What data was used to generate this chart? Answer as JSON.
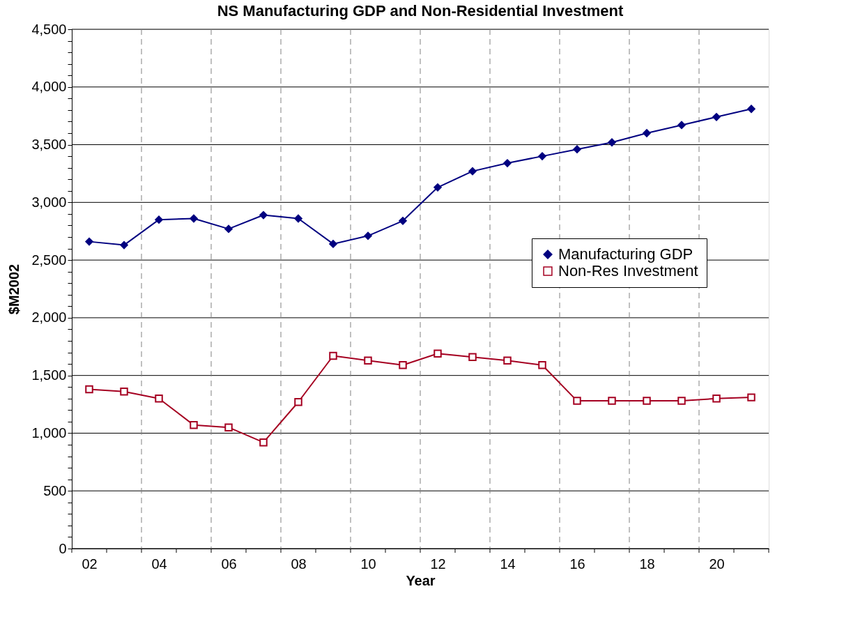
{
  "chart_data": {
    "type": "line",
    "title": "NS Manufacturing GDP  and  Non-Residential Investment",
    "xlabel": "Year",
    "ylabel": "$M2002",
    "categories": [
      "02",
      null,
      "04",
      null,
      "06",
      null,
      "08",
      null,
      "10",
      null,
      "12",
      null,
      "14",
      null,
      "16",
      null,
      "18",
      null,
      "20",
      null
    ],
    "series": [
      {
        "name": "Manufacturing GDP",
        "color": "#000080",
        "marker": "diamond",
        "values": [
          2660,
          2630,
          2850,
          2860,
          2770,
          2890,
          2860,
          2640,
          2710,
          2840,
          3130,
          3270,
          3340,
          3400,
          3460,
          3520,
          3600,
          3670,
          3740,
          3810
        ]
      },
      {
        "name": "Non-Res Investment",
        "color": "#a50021",
        "marker": "square",
        "values": [
          1380,
          1360,
          1300,
          1070,
          1050,
          920,
          1270,
          1670,
          1630,
          1590,
          1690,
          1660,
          1630,
          1590,
          1280,
          1280,
          1280,
          1280,
          1300,
          1310
        ]
      }
    ],
    "ylim": [
      0,
      4500
    ],
    "yticks": [
      0,
      {
        "value": 100,
        "label": null
      },
      {
        "value": 200,
        "label": null
      },
      {
        "value": 300,
        "label": null
      },
      {
        "value": 400,
        "label": null
      },
      {
        "value": 500,
        "label": "500"
      },
      {
        "value": 600,
        "label": null
      },
      {
        "value": 700,
        "label": null
      },
      {
        "value": 800,
        "label": null
      },
      {
        "value": 900,
        "label": null
      },
      {
        "value": 1000,
        "label": "1,000"
      },
      {
        "value": 1100,
        "label": null
      },
      {
        "value": 1200,
        "label": null
      },
      {
        "value": 1300,
        "label": null
      },
      {
        "value": 1400,
        "label": null
      },
      {
        "value": 1500,
        "label": "1,500"
      },
      {
        "value": 1600,
        "label": null
      },
      {
        "value": 1700,
        "label": null
      },
      {
        "value": 1800,
        "label": null
      },
      {
        "value": 1900,
        "label": null
      },
      {
        "value": 2000,
        "label": "2,000"
      },
      {
        "value": 2100,
        "label": null
      },
      {
        "value": 2200,
        "label": null
      },
      {
        "value": 2300,
        "label": null
      },
      {
        "value": 2400,
        "label": null
      },
      {
        "value": 2500,
        "label": "2,500"
      },
      {
        "value": 2600,
        "label": null
      },
      {
        "value": 2700,
        "label": null
      },
      {
        "value": 2800,
        "label": null
      },
      {
        "value": 2900,
        "label": null
      },
      {
        "value": 3000,
        "label": "3,000"
      },
      {
        "value": 3100,
        "label": null
      },
      {
        "value": 3200,
        "label": null
      },
      {
        "value": 3300,
        "label": null
      },
      {
        "value": 3400,
        "label": null
      },
      {
        "value": 3500,
        "label": "3,500"
      },
      {
        "value": 3600,
        "label": null
      },
      {
        "value": 3700,
        "label": null
      },
      {
        "value": 3800,
        "label": null
      },
      {
        "value": 3900,
        "label": null
      },
      {
        "value": 4000,
        "label": "4,000"
      },
      {
        "value": 4100,
        "label": null
      },
      {
        "value": 4200,
        "label": null
      },
      {
        "value": 4300,
        "label": null
      },
      {
        "value": 4400,
        "label": null
      },
      {
        "value": 4500,
        "label": "4,500"
      }
    ],
    "grid": true,
    "legend": "right",
    "line_style": "solid"
  }
}
